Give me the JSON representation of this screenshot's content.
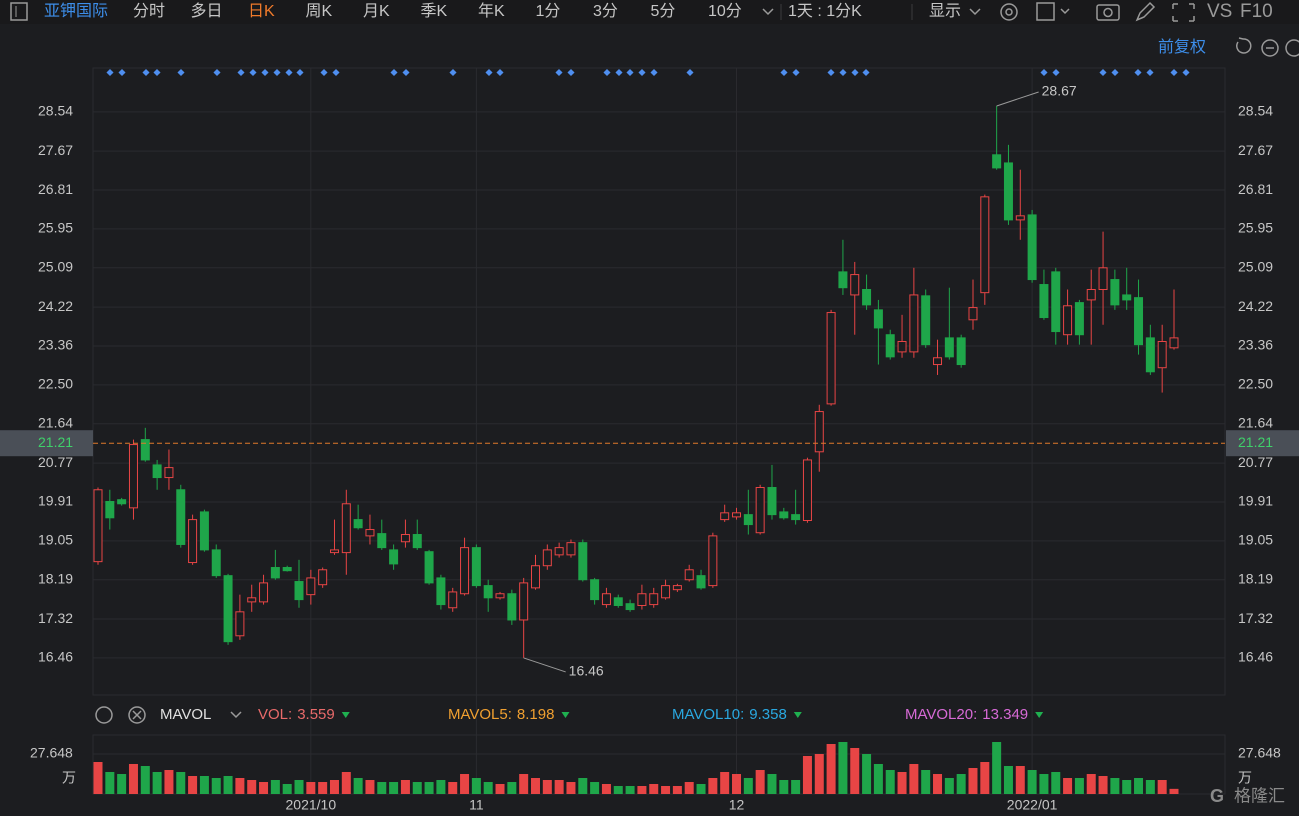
{
  "toolbar": {
    "stock": "亚钾国际",
    "tabs": [
      "分时",
      "多日",
      "日K",
      "周K",
      "月K",
      "季K",
      "年K",
      "1分",
      "3分",
      "5分",
      "10分"
    ],
    "active_tab": 2,
    "period": "1天 : 1分K",
    "display": "显示",
    "vs": "VS",
    "f10": "F10",
    "adjust": "前复权",
    "watermark": "格隆汇"
  },
  "chart_data": [
    {
      "type": "candlestick",
      "categories": [
        null,
        null,
        null,
        null,
        null,
        null,
        null,
        null,
        null,
        null,
        null,
        null,
        null,
        null,
        null,
        null,
        null,
        null,
        "2021/10",
        null,
        null,
        null,
        null,
        null,
        null,
        null,
        null,
        null,
        null,
        null,
        null,
        null,
        "11",
        null,
        null,
        null,
        null,
        null,
        null,
        null,
        null,
        null,
        null,
        null,
        null,
        null,
        null,
        null,
        null,
        null,
        null,
        null,
        null,
        null,
        "12",
        null,
        null,
        null,
        null,
        null,
        null,
        null,
        null,
        null,
        null,
        null,
        null,
        null,
        null,
        null,
        null,
        null,
        null,
        null,
        null,
        null,
        null,
        null,
        null,
        "2022/01",
        null,
        null,
        null,
        null,
        null,
        null,
        null,
        null,
        null,
        null,
        null,
        null
      ],
      "open": [
        18.59,
        19.92,
        19.96,
        19.78,
        21.29,
        20.73,
        20.45,
        20.18,
        18.57,
        19.69,
        18.85,
        18.28,
        16.95,
        17.7,
        17.7,
        18.46,
        18.46,
        18.15,
        17.86,
        18.08,
        18.79,
        18.79,
        19.52,
        19.16,
        19.21,
        18.85,
        19.03,
        19.19,
        18.81,
        18.23,
        17.57,
        17.88,
        18.9,
        18.06,
        17.79,
        17.88,
        17.3,
        18.01,
        18.5,
        18.74,
        18.74,
        19.01,
        18.19,
        17.64,
        17.79,
        17.66,
        17.62,
        17.64,
        17.79,
        17.97,
        18.19,
        18.28,
        18.06,
        19.52,
        19.58,
        19.63,
        19.23,
        20.23,
        19.69,
        19.63,
        19.5,
        21.02,
        22.08,
        25.0,
        24.49,
        24.61,
        24.16,
        23.61,
        23.23,
        23.23,
        24.47,
        22.95,
        23.54,
        23.54,
        23.94,
        24.54,
        27.59,
        27.41,
        26.15,
        26.26,
        24.72,
        25.0,
        23.61,
        24.32,
        24.38,
        24.61,
        24.83,
        24.49,
        24.43,
        23.54,
        22.88,
        23.32
      ],
      "high": [
        20.23,
        20.18,
        20.0,
        21.29,
        21.55,
        20.84,
        21.07,
        20.29,
        19.63,
        19.74,
        18.97,
        18.32,
        17.86,
        18.08,
        18.3,
        18.85,
        18.5,
        18.63,
        18.41,
        18.46,
        19.52,
        20.18,
        19.85,
        19.63,
        19.52,
        18.97,
        19.52,
        19.52,
        18.85,
        18.3,
        18.01,
        19.12,
        18.97,
        18.19,
        17.92,
        17.97,
        18.23,
        18.74,
        18.97,
        19.01,
        19.08,
        19.08,
        18.23,
        18.01,
        17.86,
        17.75,
        18.08,
        18.01,
        18.19,
        18.1,
        18.52,
        18.41,
        19.23,
        19.85,
        19.78,
        20.18,
        20.29,
        20.73,
        19.78,
        20.18,
        20.89,
        22.06,
        24.16,
        25.71,
        25.22,
        24.94,
        24.38,
        23.72,
        24.05,
        25.09,
        24.61,
        23.5,
        24.65,
        23.61,
        24.83,
        26.71,
        28.67,
        27.81,
        27.26,
        26.37,
        25.05,
        25.09,
        24.61,
        24.38,
        25.05,
        25.89,
        25.05,
        25.09,
        24.83,
        23.83,
        23.83,
        24.61
      ],
      "low": [
        18.52,
        19.3,
        19.83,
        19.52,
        20.8,
        20.18,
        20.18,
        18.9,
        18.52,
        18.81,
        18.23,
        16.75,
        16.86,
        17.48,
        17.64,
        18.19,
        18.37,
        17.57,
        17.64,
        18.01,
        18.74,
        18.3,
        19.3,
        18.97,
        18.85,
        18.41,
        18.9,
        18.85,
        18.08,
        17.53,
        17.48,
        17.84,
        18.01,
        17.48,
        17.75,
        17.19,
        16.46,
        17.97,
        18.41,
        18.68,
        18.68,
        18.15,
        17.64,
        17.57,
        17.57,
        17.48,
        17.53,
        17.57,
        17.75,
        17.92,
        18.15,
        17.97,
        18.01,
        19.47,
        19.52,
        19.19,
        19.19,
        19.52,
        19.52,
        19.41,
        19.45,
        20.58,
        22.04,
        24.49,
        23.61,
        24.16,
        22.95,
        23.06,
        23.1,
        23.1,
        23.32,
        22.72,
        23.06,
        22.88,
        23.72,
        24.27,
        27.26,
        26.04,
        25.71,
        24.76,
        23.94,
        23.39,
        23.39,
        23.39,
        23.39,
        23.83,
        24.16,
        24.16,
        23.17,
        22.72,
        22.33,
        23.28
      ],
      "close": [
        20.18,
        19.56,
        19.87,
        21.18,
        20.84,
        20.45,
        20.67,
        18.97,
        19.52,
        18.85,
        18.28,
        16.82,
        17.48,
        17.79,
        18.12,
        18.23,
        18.39,
        17.75,
        18.23,
        18.41,
        18.85,
        19.87,
        19.34,
        19.3,
        18.9,
        18.54,
        19.19,
        18.9,
        18.12,
        17.64,
        17.92,
        18.9,
        18.06,
        17.79,
        17.88,
        17.3,
        18.12,
        18.5,
        18.85,
        18.9,
        19.01,
        18.19,
        17.75,
        17.88,
        17.62,
        17.53,
        17.88,
        17.88,
        18.06,
        18.06,
        18.41,
        18.01,
        19.16,
        19.67,
        19.67,
        19.41,
        20.23,
        19.63,
        19.56,
        19.52,
        20.84,
        21.91,
        24.1,
        24.65,
        24.94,
        24.27,
        23.76,
        23.12,
        23.46,
        24.49,
        23.39,
        23.1,
        23.12,
        22.95,
        24.21,
        26.66,
        27.3,
        26.15,
        26.24,
        24.83,
        23.99,
        23.68,
        24.25,
        23.61,
        24.61,
        25.09,
        24.27,
        24.38,
        23.39,
        22.79,
        23.46,
        23.54
      ],
      "up_color": "#e84545",
      "down_color": "#1fa64a",
      "ylim": [
        15.64,
        29.51
      ],
      "yticks": [
        16.46,
        17.32,
        18.19,
        19.05,
        19.91,
        20.77,
        21.64,
        {
          "value": 22.5,
          "label": "22.50"
        },
        23.36,
        24.22,
        25.09,
        25.95,
        26.81,
        27.67,
        28.54
      ],
      "current_price": 21.21,
      "high_annotation": 28.67,
      "low_annotation": 16.46,
      "grid": true
    },
    {
      "type": "bar",
      "title": "MAVOL",
      "unit": "万",
      "values": [
        22.12,
        15.21,
        13.82,
        20.74,
        19.35,
        15.21,
        16.59,
        15.21,
        12.44,
        12.44,
        11.06,
        12.44,
        11.06,
        9.68,
        8.29,
        9.68,
        6.91,
        9.68,
        8.29,
        8.29,
        9.68,
        15.21,
        11.06,
        9.68,
        8.29,
        8.29,
        9.68,
        8.29,
        8.29,
        9.68,
        8.29,
        13.82,
        11.06,
        8.29,
        6.91,
        8.29,
        13.82,
        11.06,
        9.68,
        9.68,
        8.29,
        11.06,
        8.29,
        6.91,
        5.53,
        5.53,
        5.53,
        6.91,
        5.53,
        5.53,
        8.29,
        6.91,
        11.06,
        15.21,
        13.82,
        11.06,
        16.59,
        13.82,
        9.68,
        9.68,
        26.27,
        27.65,
        34.56,
        35.94,
        31.8,
        27.65,
        20.74,
        16.59,
        15.21,
        20.74,
        16.59,
        13.82,
        11.06,
        13.82,
        17.97,
        22.12,
        35.94,
        19.35,
        19.35,
        16.59,
        13.82,
        15.21,
        11.06,
        11.06,
        13.82,
        12.44,
        11.06,
        9.68,
        11.06,
        9.68,
        9.68,
        3.559
      ],
      "ylim": [
        0,
        40.78
      ],
      "yticks": [
        27.648
      ],
      "indicators": [
        {
          "name": "VOL:",
          "value": 3.559,
          "color": "#e86a6a"
        },
        {
          "name": "MAVOL5:",
          "value": 8.198,
          "color": "#f0a030"
        },
        {
          "name": "MAVOL10:",
          "value": 9.358,
          "color": "#2aa8e0"
        },
        {
          "name": "MAVOL20:",
          "value": 13.349,
          "color": "#d76ad6"
        }
      ]
    }
  ]
}
